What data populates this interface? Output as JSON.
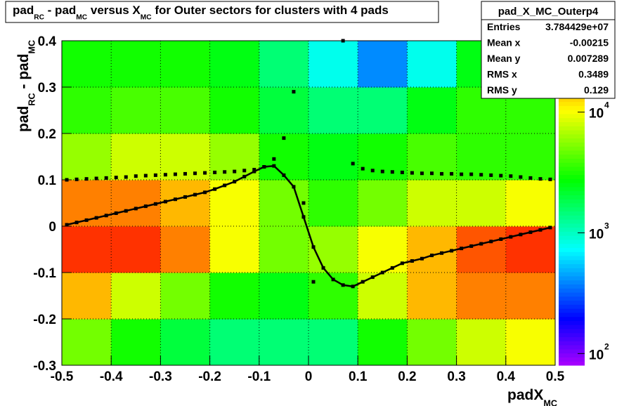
{
  "chart_data": {
    "type": "heatmap",
    "title": [
      "pad",
      "RC",
      " - pad",
      "MC",
      " versus X",
      "MC",
      " for Outer sectors for clusters with 4 pads"
    ],
    "x_label": [
      "padX",
      "MC"
    ],
    "y_label": [
      "pad",
      "RC",
      " - pad",
      "MC"
    ],
    "xlim": [
      -0.5,
      0.5
    ],
    "ylim": [
      -0.3,
      0.4
    ],
    "xticks": [
      -0.5,
      -0.4,
      -0.3,
      -0.2,
      -0.1,
      0,
      0.1,
      0.2,
      0.3,
      0.4,
      0.5
    ],
    "yticks": [
      -0.3,
      -0.2,
      -0.1,
      0,
      0.1,
      0.2,
      0.3,
      0.4
    ],
    "grid": true,
    "zlog": true,
    "zlim": [
      80,
      39000
    ],
    "zticks": [
      {
        "value": 100,
        "label": "10",
        "exponent": "2"
      },
      {
        "value": 1000,
        "label": "10",
        "exponent": "3"
      },
      {
        "value": 10000,
        "label": "10",
        "exponent": "4"
      }
    ],
    "xbins": [
      -0.5,
      -0.4,
      -0.3,
      -0.2,
      -0.1,
      0,
      0.1,
      0.2,
      0.3,
      0.4,
      0.5
    ],
    "ybins": [
      -0.3,
      -0.2,
      -0.1,
      0,
      0.1,
      0.2,
      0.3,
      0.4
    ],
    "z": [
      [
        5000,
        3000,
        2000,
        1500,
        1500,
        1500,
        3000,
        5000,
        8000,
        10000
      ],
      [
        15000,
        8000,
        5000,
        3000,
        2500,
        3500,
        8000,
        15000,
        20000,
        20000
      ],
      [
        30000,
        30000,
        20000,
        10000,
        5000,
        6000,
        10000,
        15000,
        25000,
        30000
      ],
      [
        20000,
        20000,
        15000,
        10000,
        5000,
        3500,
        5000,
        8000,
        8000,
        10000
      ],
      [
        6000,
        8000,
        8000,
        6000,
        3000,
        2500,
        3000,
        4000,
        3500,
        3500
      ],
      [
        3500,
        4000,
        4000,
        3000,
        2000,
        1500,
        1500,
        2500,
        3500,
        3500
      ],
      [
        3000,
        3000,
        3000,
        2500,
        1500,
        800,
        400,
        800,
        2500,
        3000
      ]
    ],
    "x": [
      -0.49,
      -0.47,
      -0.45,
      -0.43,
      -0.41,
      -0.39,
      -0.37,
      -0.35,
      -0.33,
      -0.31,
      -0.29,
      -0.27,
      -0.25,
      -0.23,
      -0.21,
      -0.19,
      -0.17,
      -0.15,
      -0.13,
      -0.11,
      -0.09,
      -0.07,
      -0.05,
      -0.03,
      -0.01,
      0.01,
      0.03,
      0.05,
      0.07,
      0.09,
      0.11,
      0.13,
      0.15,
      0.17,
      0.19,
      0.21,
      0.23,
      0.25,
      0.27,
      0.29,
      0.31,
      0.33,
      0.35,
      0.37,
      0.39,
      0.41,
      0.43,
      0.45,
      0.47,
      0.49
    ],
    "series": [
      {
        "color": "#000000",
        "values": [
          0.1,
          0.101,
          0.102,
          0.103,
          0.104,
          0.105,
          0.106,
          0.108,
          0.109,
          0.11,
          0.111,
          0.112,
          0.113,
          0.114,
          0.115,
          0.116,
          0.117,
          0.118,
          0.12,
          0.122,
          0.128,
          0.145,
          0.19,
          0.29,
          0.05,
          -0.12,
          null,
          null,
          0.4,
          0.135,
          0.124,
          0.12,
          0.118,
          0.117,
          0.116,
          0.115,
          0.114,
          0.114,
          0.113,
          0.113,
          0.112,
          0.112,
          0.111,
          0.11,
          0.109,
          0.108,
          0.106,
          0.104,
          0.102,
          0.101
        ]
      },
      {
        "color": "#000000",
        "values": [
          0.003,
          0.008,
          0.013,
          0.018,
          0.023,
          0.028,
          0.033,
          0.038,
          0.043,
          0.048,
          0.053,
          0.058,
          0.063,
          0.068,
          0.073,
          0.08,
          0.088,
          0.096,
          0.107,
          0.118,
          0.128,
          0.13,
          0.11,
          0.085,
          0.02,
          -0.045,
          -0.09,
          -0.115,
          -0.127,
          -0.13,
          -0.12,
          -0.11,
          -0.1,
          -0.09,
          -0.08,
          -0.075,
          -0.07,
          -0.063,
          -0.058,
          -0.053,
          -0.048,
          -0.043,
          -0.038,
          -0.033,
          -0.028,
          -0.023,
          -0.018,
          -0.013,
          -0.008,
          -0.003
        ]
      }
    ],
    "stats": {
      "title": "pad_X_MC_Outerp4",
      "rows": [
        [
          "Entries",
          "3.784429e+07"
        ],
        [
          "Mean x",
          "-0.00215"
        ],
        [
          "Mean y",
          "0.007289"
        ],
        [
          "RMS x",
          "0.3489"
        ],
        [
          "RMS y",
          "0.129"
        ]
      ]
    }
  }
}
